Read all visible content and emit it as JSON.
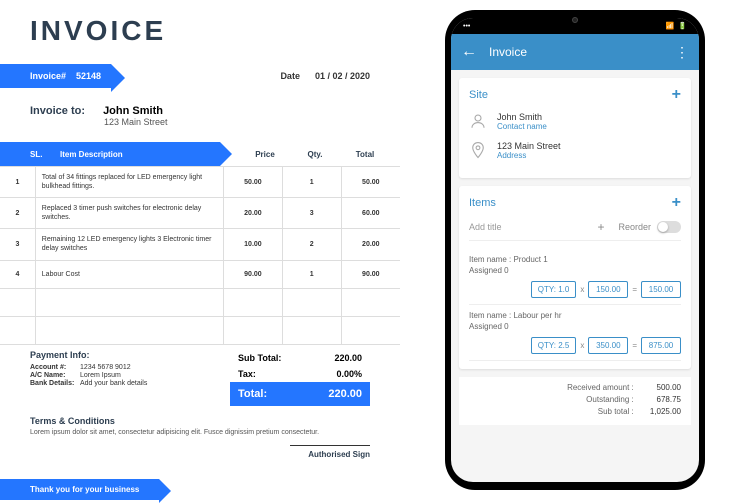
{
  "invoice": {
    "title": "INVOICE",
    "number_label": "Invoice#",
    "number": "52148",
    "date_label": "Date",
    "date": "01 / 02 / 2020",
    "to_label": "Invoice to:",
    "to_name": "John Smith",
    "to_address": "123 Main Street",
    "columns": {
      "sl": "SL.",
      "desc": "Item Description",
      "price": "Price",
      "qty": "Qty.",
      "total": "Total"
    },
    "rows": [
      {
        "sl": "1",
        "desc": "Total of 34 fittings replaced for LED emergency light bulkhead fittings.",
        "price": "50.00",
        "qty": "1",
        "total": "50.00"
      },
      {
        "sl": "2",
        "desc": "Replaced 3 timer push switches for electronic delay switches.",
        "price": "20.00",
        "qty": "3",
        "total": "60.00"
      },
      {
        "sl": "3",
        "desc": "Remaining 12 LED emergency lights 3 Electronic timer delay switches",
        "price": "10.00",
        "qty": "2",
        "total": "20.00"
      },
      {
        "sl": "4",
        "desc": "Labour Cost",
        "price": "90.00",
        "qty": "1",
        "total": "90.00"
      }
    ],
    "subtotal_label": "Sub Total:",
    "subtotal": "220.00",
    "tax_label": "Tax:",
    "tax": "0.00%",
    "total_label": "Total:",
    "total": "220.00",
    "payment_title": "Payment Info:",
    "payment": {
      "account_k": "Account #:",
      "account_v": "1234 5678 9012",
      "ac_k": "A/C Name:",
      "ac_v": "Lorem Ipsum",
      "bank_k": "Bank Details:",
      "bank_v": "Add your bank details"
    },
    "terms_title": "Terms & Conditions",
    "terms_text": "Lorem ipsum dolor sit amet, consectetur adipisicing elit. Fusce dignissim pretium consectetur.",
    "sign_label": "Authorised Sign",
    "footer": "Thank you for your business"
  },
  "phone": {
    "status_time": "",
    "app_title": "Invoice",
    "site": {
      "label": "Site",
      "name": "John Smith",
      "name_hint": "Contact name",
      "address": "123 Main Street",
      "address_hint": "Address"
    },
    "items": {
      "label": "Items",
      "add_title": "Add title",
      "reorder": "Reorder",
      "list": [
        {
          "name_label": "Item name :",
          "name": "Product 1",
          "assigned_label": "Assigned",
          "assigned": "0",
          "qty_label": "QTY:",
          "qty": "1.0",
          "rate": "150.00",
          "total": "150.00"
        },
        {
          "name_label": "Item name :",
          "name": "Labour per hr",
          "assigned_label": "Assigned",
          "assigned": "0",
          "qty_label": "QTY:",
          "qty": "2.5",
          "rate": "350.00",
          "total": "875.00"
        }
      ]
    },
    "summary": {
      "received_k": "Received amount :",
      "received_v": "500.00",
      "outstanding_k": "Outstanding :",
      "outstanding_v": "678.75",
      "subtotal_k": "Sub total :",
      "subtotal_v": "1,025.00"
    }
  },
  "colors": {
    "accent": "#2476ff",
    "phone_accent": "#3a8fc8"
  }
}
